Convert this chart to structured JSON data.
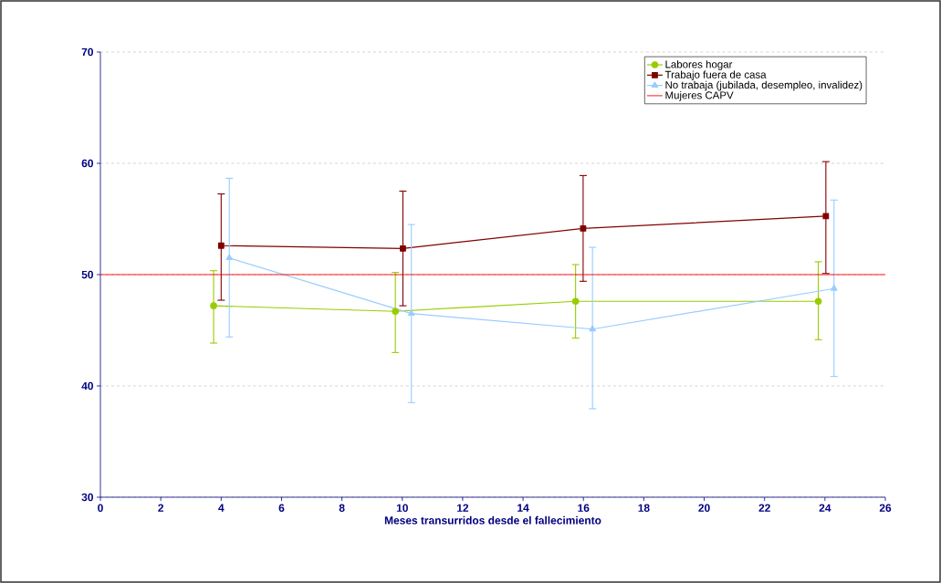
{
  "chart_data": {
    "type": "line",
    "xlabel": "Meses transurridos desde el fallecimiento",
    "xlim": [
      0,
      26
    ],
    "xticks": [
      0,
      2,
      4,
      6,
      8,
      10,
      12,
      14,
      16,
      18,
      20,
      22,
      24,
      26
    ],
    "ylim": [
      30,
      70
    ],
    "yticks": [
      30,
      40,
      50,
      60,
      70
    ],
    "grid": "y",
    "legend": "top right",
    "series": [
      {
        "name": "Labores hogar",
        "color": "#99cc00",
        "marker": "circle",
        "x": [
          3.75,
          9.77,
          15.74,
          23.78
        ],
        "values": [
          47.2,
          46.7,
          47.6,
          47.6
        ],
        "errors": [
          [
            43.85,
            50.35
          ],
          [
            43.0,
            50.2
          ],
          [
            44.3,
            50.9
          ],
          [
            44.15,
            51.15
          ]
        ]
      },
      {
        "name": "Trabajo fuera de casa",
        "color": "#800000",
        "marker": "square",
        "x": [
          4.0,
          10.02,
          15.99,
          24.03
        ],
        "values": [
          52.6,
          52.35,
          54.15,
          55.25
        ],
        "errors": [
          [
            47.7,
            57.25
          ],
          [
            47.2,
            57.5
          ],
          [
            49.4,
            58.9
          ],
          [
            50.1,
            60.15
          ]
        ]
      },
      {
        "name": "No trabaja (jubilada, desempleo, invalidez)",
        "color": "#99ccff",
        "marker": "triangle",
        "x": [
          4.27,
          10.3,
          16.3,
          24.3
        ],
        "values": [
          51.5,
          46.5,
          45.1,
          48.75
        ],
        "errors": [
          [
            44.4,
            58.65
          ],
          [
            38.5,
            54.5
          ],
          [
            37.95,
            52.45
          ],
          [
            40.85,
            56.7
          ]
        ]
      }
    ],
    "ref_lines": [
      {
        "axis": "y",
        "value": 50,
        "label": "Mujeres CAPV",
        "color": "#ff0000",
        "line_style": "solid"
      }
    ]
  }
}
